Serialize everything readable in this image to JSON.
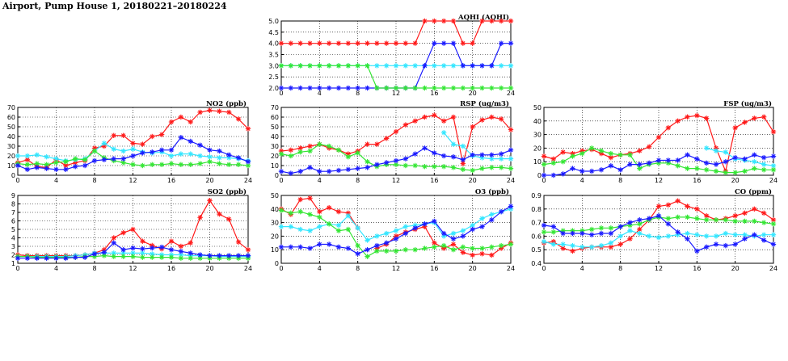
{
  "page": {
    "title": "Airport, Pump House 1, 20180221–20180224"
  },
  "colors": {
    "red": "#ff1a1a",
    "blue": "#1a1aff",
    "cyan": "#33e6ff",
    "green": "#33e633"
  },
  "chart_data": [
    {
      "id": "aqhi",
      "type": "line",
      "title": "AQHI (AQHI)",
      "x": [
        0,
        1,
        2,
        3,
        4,
        5,
        6,
        7,
        8,
        9,
        10,
        11,
        12,
        13,
        14,
        15,
        16,
        17,
        18,
        19,
        20,
        21,
        22,
        23,
        24
      ],
      "xlim": [
        0,
        24
      ],
      "xticks": [
        0,
        4,
        8,
        12,
        16,
        20,
        24
      ],
      "ylim": [
        2.0,
        5.0
      ],
      "yticks": [
        "2.0",
        "2.5",
        "3.0",
        "3.5",
        "4.0",
        "4.5",
        "5.0"
      ],
      "grid": true,
      "series": [
        {
          "color": "red",
          "values": [
            4,
            4,
            4,
            4,
            4,
            4,
            4,
            4,
            4,
            4,
            4,
            4,
            4,
            4,
            4,
            5,
            5,
            5,
            5,
            4,
            4,
            5,
            5,
            5,
            5
          ]
        },
        {
          "color": "cyan",
          "values": [
            3,
            3,
            3,
            3,
            3,
            3,
            3,
            3,
            3,
            3,
            3,
            3,
            3,
            3,
            3,
            3,
            3,
            3,
            3,
            3,
            3,
            3,
            3,
            3,
            3
          ]
        },
        {
          "color": "blue",
          "values": [
            2,
            2,
            2,
            2,
            2,
            2,
            2,
            2,
            2,
            2,
            2,
            2,
            2,
            2,
            2,
            3,
            4,
            4,
            4,
            3,
            3,
            3,
            3,
            4,
            4
          ]
        },
        {
          "color": "green",
          "values": [
            3,
            3,
            3,
            3,
            3,
            3,
            3,
            3,
            3,
            3,
            2,
            2,
            2,
            2,
            2,
            2,
            2,
            2,
            2,
            2,
            2,
            2,
            2,
            2,
            2
          ]
        }
      ]
    },
    {
      "id": "no2",
      "type": "line",
      "title": "NO2 (ppb)",
      "x": [
        0,
        1,
        2,
        3,
        4,
        5,
        6,
        7,
        8,
        9,
        10,
        11,
        12,
        13,
        14,
        15,
        16,
        17,
        18,
        19,
        20,
        21,
        22,
        23,
        24
      ],
      "xlim": [
        0,
        24
      ],
      "xticks": [
        0,
        4,
        8,
        12,
        16,
        20,
        24
      ],
      "ylim": [
        0,
        70
      ],
      "yticks": [
        "0",
        "10",
        "20",
        "30",
        "40",
        "50",
        "60",
        "70"
      ],
      "grid": true,
      "series": [
        {
          "color": "red",
          "values": [
            13,
            16,
            9,
            8,
            16,
            10,
            13,
            15,
            28,
            30,
            41,
            41,
            33,
            32,
            40,
            42,
            55,
            60,
            55,
            65,
            67,
            66,
            65,
            58,
            48
          ]
        },
        {
          "color": "cyan",
          "values": [
            20,
            20,
            21,
            19,
            17,
            15,
            16,
            17,
            25,
            33,
            27,
            25,
            27,
            24,
            23,
            24,
            20,
            22,
            22,
            20,
            19,
            18,
            18,
            17,
            15
          ]
        },
        {
          "color": "green",
          "values": [
            12,
            11,
            12,
            11,
            13,
            14,
            17,
            16,
            25,
            18,
            15,
            13,
            11,
            10,
            11,
            11,
            12,
            11,
            11,
            12,
            14,
            12,
            11,
            11,
            10
          ]
        },
        {
          "color": "blue",
          "values": [
            10,
            6,
            8,
            7,
            6,
            6,
            9,
            10,
            15,
            16,
            17,
            17,
            20,
            23,
            24,
            26,
            26,
            39,
            35,
            31,
            26,
            25,
            21,
            18,
            14
          ]
        }
      ]
    },
    {
      "id": "rsp",
      "type": "line",
      "title": "RSP (ug/m3)",
      "x": [
        0,
        1,
        2,
        3,
        4,
        5,
        6,
        7,
        8,
        9,
        10,
        11,
        12,
        13,
        14,
        15,
        16,
        17,
        18,
        19,
        20,
        21,
        22,
        23,
        24
      ],
      "xlim": [
        0,
        24
      ],
      "xticks": [
        0,
        4,
        8,
        12,
        16,
        20,
        24
      ],
      "ylim": [
        0,
        70
      ],
      "yticks": [
        "0",
        "10",
        "20",
        "30",
        "40",
        "50",
        "60",
        "70"
      ],
      "grid": true,
      "series": [
        {
          "color": "red",
          "values": [
            25,
            26,
            28,
            30,
            32,
            28,
            26,
            22,
            25,
            32,
            32,
            38,
            45,
            52,
            56,
            60,
            62,
            56,
            60,
            12,
            50,
            57,
            60,
            58,
            47
          ]
        },
        {
          "color": "cyan",
          "values": [
            null,
            null,
            null,
            null,
            null,
            null,
            null,
            null,
            null,
            null,
            null,
            null,
            null,
            null,
            null,
            null,
            null,
            44,
            32,
            30,
            20,
            18,
            17,
            17,
            17
          ]
        },
        {
          "color": "green",
          "values": [
            22,
            20,
            24,
            25,
            32,
            30,
            26,
            19,
            23,
            14,
            9,
            11,
            11,
            10,
            10,
            9,
            9,
            9,
            8,
            6,
            5,
            7,
            8,
            8,
            7
          ]
        },
        {
          "color": "blue",
          "values": [
            4,
            2,
            4,
            8,
            4,
            4,
            5,
            6,
            7,
            8,
            11,
            13,
            15,
            17,
            22,
            28,
            23,
            20,
            19,
            16,
            21,
            21,
            21,
            22,
            26
          ]
        }
      ]
    },
    {
      "id": "fsp",
      "type": "line",
      "title": "FSP (ug/m3)",
      "x": [
        0,
        1,
        2,
        3,
        4,
        5,
        6,
        7,
        8,
        9,
        10,
        11,
        12,
        13,
        14,
        15,
        16,
        17,
        18,
        19,
        20,
        21,
        22,
        23,
        24
      ],
      "xlim": [
        0,
        24
      ],
      "xticks": [
        0,
        4,
        8,
        12,
        16,
        20,
        24
      ],
      "ylim": [
        0,
        50
      ],
      "yticks": [
        "0",
        "10",
        "20",
        "30",
        "40",
        "50"
      ],
      "grid": true,
      "series": [
        {
          "color": "red",
          "values": [
            14,
            12,
            17,
            16,
            18,
            19,
            16,
            13,
            15,
            16,
            18,
            21,
            28,
            35,
            40,
            43,
            44,
            42,
            20,
            3,
            35,
            39,
            42,
            43,
            32
          ]
        },
        {
          "color": "cyan",
          "values": [
            null,
            null,
            null,
            null,
            null,
            null,
            null,
            null,
            null,
            null,
            null,
            null,
            null,
            null,
            null,
            null,
            null,
            20,
            18,
            17,
            12,
            11,
            10,
            8,
            7
          ]
        },
        {
          "color": "green",
          "values": [
            8,
            9,
            10,
            14,
            16,
            20,
            18,
            16,
            15,
            15,
            5,
            8,
            9,
            9,
            7,
            5,
            5,
            4,
            3,
            2,
            2,
            3,
            5,
            4,
            4
          ]
        },
        {
          "color": "blue",
          "values": [
            0,
            0,
            1,
            5,
            3,
            3,
            4,
            7,
            4,
            8,
            8,
            9,
            11,
            11,
            11,
            15,
            12,
            9,
            8,
            10,
            13,
            12,
            15,
            13,
            14
          ]
        }
      ]
    },
    {
      "id": "so2",
      "type": "line",
      "title": "SO2 (ppb)",
      "x": [
        0,
        1,
        2,
        3,
        4,
        5,
        6,
        7,
        8,
        9,
        10,
        11,
        12,
        13,
        14,
        15,
        16,
        17,
        18,
        19,
        20,
        21,
        22,
        23,
        24
      ],
      "xlim": [
        0,
        24
      ],
      "xticks": [
        0,
        4,
        8,
        12,
        16,
        20,
        24
      ],
      "ylim": [
        1,
        9
      ],
      "yticks": [
        "1",
        "2",
        "3",
        "4",
        "5",
        "6",
        "7",
        "8",
        "9"
      ],
      "grid": true,
      "series": [
        {
          "color": "red",
          "values": [
            2,
            1.9,
            1.9,
            1.9,
            1.9,
            1.9,
            1.9,
            2,
            2.2,
            2.6,
            4,
            4.6,
            5,
            3.6,
            3.1,
            2.7,
            3.6,
            3,
            3.4,
            6.4,
            8.4,
            6.8,
            6.2,
            3.5,
            2.6
          ]
        },
        {
          "color": "cyan",
          "values": [
            1.8,
            1.8,
            1.8,
            1.8,
            1.8,
            1.8,
            1.9,
            2,
            2.2,
            2.2,
            2.2,
            2.2,
            2.2,
            2.2,
            2.1,
            2,
            2,
            2,
            1.9,
            1.9,
            1.9,
            1.8,
            1.8,
            1.8,
            1.8
          ]
        },
        {
          "color": "green",
          "values": [
            1.8,
            1.8,
            1.7,
            1.7,
            1.7,
            1.7,
            1.7,
            1.8,
            1.8,
            1.9,
            1.8,
            1.8,
            1.8,
            1.7,
            1.7,
            1.7,
            1.7,
            1.6,
            1.6,
            1.6,
            1.6,
            1.6,
            1.6,
            1.6,
            1.6
          ]
        },
        {
          "color": "blue",
          "values": [
            1.6,
            1.6,
            1.6,
            1.6,
            1.6,
            1.6,
            1.7,
            1.7,
            2.1,
            2.3,
            3.4,
            2.6,
            2.8,
            2.7,
            2.8,
            2.9,
            2.6,
            2.4,
            2.2,
            2,
            1.9,
            1.9,
            1.9,
            1.9,
            1.9
          ]
        }
      ]
    },
    {
      "id": "o3",
      "type": "line",
      "title": "O3 (ppb)",
      "x": [
        0,
        1,
        2,
        3,
        4,
        5,
        6,
        7,
        8,
        9,
        10,
        11,
        12,
        13,
        14,
        15,
        16,
        17,
        18,
        19,
        20,
        21,
        22,
        23,
        24
      ],
      "xlim": [
        0,
        24
      ],
      "xticks": [
        0,
        4,
        8,
        12,
        16,
        20,
        24
      ],
      "ylim": [
        0,
        50
      ],
      "yticks": [
        "0",
        "10",
        "20",
        "30",
        "40",
        "50"
      ],
      "grid": true,
      "series": [
        {
          "color": "red",
          "values": [
            40,
            36,
            47,
            48,
            38,
            41,
            38,
            37,
            26,
            null,
            11,
            14,
            20,
            23,
            25,
            27,
            15,
            11,
            14,
            8,
            6,
            7,
            6,
            11,
            15
          ]
        },
        {
          "color": "cyan",
          "values": [
            27,
            27,
            25,
            24,
            27,
            29,
            28,
            35,
            26,
            17,
            20,
            22,
            24,
            27,
            28,
            29,
            30,
            20,
            22,
            24,
            28,
            33,
            36,
            38,
            40
          ]
        },
        {
          "color": "green",
          "values": [
            39,
            37,
            38,
            36,
            34,
            29,
            24,
            25,
            13,
            5,
            9,
            9,
            9,
            10,
            10,
            11,
            12,
            13,
            10,
            12,
            11,
            11,
            12,
            13,
            14
          ]
        },
        {
          "color": "blue",
          "values": [
            12,
            12,
            12,
            11,
            14,
            14,
            12,
            11,
            7,
            10,
            13,
            15,
            18,
            22,
            26,
            29,
            31,
            22,
            18,
            20,
            25,
            27,
            32,
            38,
            42
          ]
        }
      ]
    },
    {
      "id": "co",
      "type": "line",
      "title": "CO (ppm)",
      "x": [
        0,
        1,
        2,
        3,
        4,
        5,
        6,
        7,
        8,
        9,
        10,
        11,
        12,
        13,
        14,
        15,
        16,
        17,
        18,
        19,
        20,
        21,
        22,
        23,
        24
      ],
      "xlim": [
        0,
        24
      ],
      "xticks": [
        0,
        4,
        8,
        12,
        16,
        20,
        24
      ],
      "ylim": [
        0.4,
        0.9
      ],
      "yticks": [
        "0.4",
        "0.5",
        "0.6",
        "0.7",
        "0.8",
        "0.9"
      ],
      "grid": true,
      "series": [
        {
          "color": "red",
          "values": [
            0.55,
            0.56,
            0.51,
            0.49,
            0.51,
            0.52,
            0.52,
            0.52,
            0.54,
            0.58,
            0.65,
            0.72,
            0.82,
            0.83,
            0.86,
            0.82,
            0.8,
            0.75,
            0.72,
            0.73,
            0.75,
            0.77,
            0.8,
            0.77,
            0.72
          ]
        },
        {
          "color": "cyan",
          "values": [
            0.56,
            0.54,
            0.54,
            0.53,
            0.52,
            0.52,
            0.53,
            0.55,
            0.6,
            0.64,
            0.62,
            0.6,
            0.59,
            0.6,
            0.61,
            0.62,
            0.61,
            0.6,
            0.6,
            0.62,
            0.61,
            0.61,
            0.6,
            0.61,
            0.61
          ]
        },
        {
          "color": "green",
          "values": [
            0.63,
            0.63,
            0.64,
            0.64,
            0.64,
            0.65,
            0.66,
            0.66,
            0.67,
            0.68,
            0.69,
            0.72,
            0.74,
            0.73,
            0.74,
            0.74,
            0.73,
            0.72,
            0.72,
            0.72,
            0.71,
            0.71,
            0.71,
            0.7,
            0.69
          ]
        },
        {
          "color": "blue",
          "values": [
            0.68,
            0.67,
            0.62,
            0.62,
            0.62,
            0.61,
            0.62,
            0.62,
            0.67,
            0.7,
            0.72,
            0.73,
            0.75,
            0.69,
            0.63,
            0.58,
            0.49,
            0.52,
            0.54,
            0.53,
            0.54,
            0.58,
            0.61,
            0.57,
            0.54
          ]
        }
      ]
    }
  ]
}
